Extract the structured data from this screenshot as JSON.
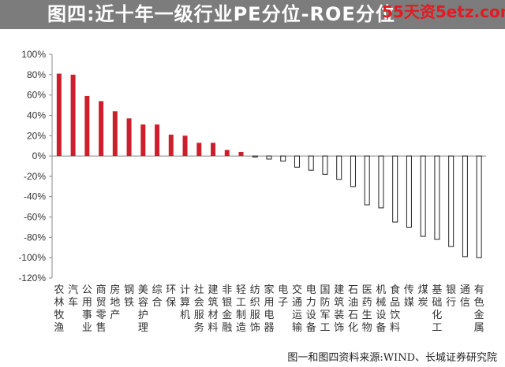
{
  "header": {
    "title": "图四:近十年一级行业PE分位-ROE分位",
    "watermark": "55天资5etz.com",
    "background_color": "#7c7c7c"
  },
  "source": "图一和图四资料来源:WIND、长城证券研究院",
  "chart_data": {
    "type": "bar",
    "title": "图四:近十年一级行业PE分位-ROE分位",
    "xlabel": "",
    "ylabel": "",
    "ylim": [
      -120,
      100
    ],
    "yticks": [
      100,
      80,
      60,
      40,
      20,
      0,
      -20,
      -40,
      -60,
      -80,
      -100,
      -120
    ],
    "ytick_suffix": "%",
    "grid": false,
    "legend": "none",
    "positive_color": "#cc1f2e",
    "negative_color": "#ffffff",
    "negative_edge_color": "#222222",
    "categories": [
      "农林牧渔",
      "汽车",
      "公用事业",
      "商贸零售",
      "房地产",
      "钢铁",
      "美容护理",
      "综合",
      "环保",
      "计算机",
      "社会服务",
      "建筑材料",
      "非银金融",
      "轻工制造",
      "纺织服饰",
      "家用电器",
      "电子",
      "交通运输",
      "电力设备",
      "国防军工",
      "建筑装饰",
      "石油石化",
      "医药生物",
      "机械设备",
      "食品饮料",
      "传媒",
      "煤炭",
      "基础化工",
      "银行",
      "通信",
      "有色金属"
    ],
    "values": [
      81,
      80,
      59,
      54,
      44,
      37,
      31,
      31,
      21,
      20,
      13,
      13,
      6,
      4,
      -1,
      -3,
      -5,
      -11,
      -14,
      -18,
      -23,
      -30,
      -48,
      -51,
      -65,
      -70,
      -79,
      -82,
      -89,
      -99,
      -100
    ]
  }
}
